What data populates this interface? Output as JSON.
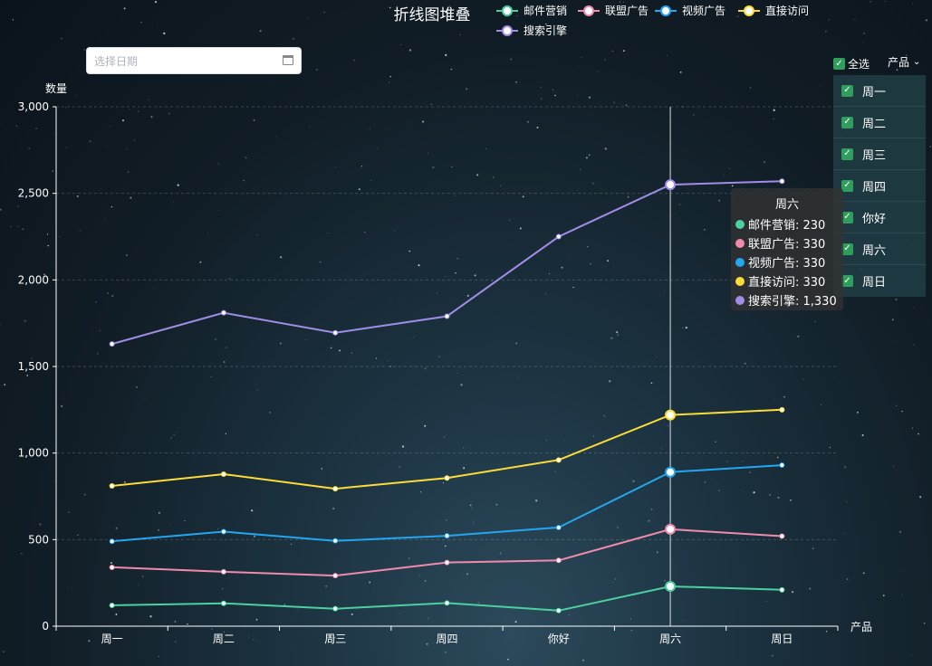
{
  "chart_data": {
    "type": "line",
    "title": "折线图堆叠",
    "ylabel": "数量",
    "xlabel": "产品",
    "categories": [
      "周一",
      "周二",
      "周三",
      "周四",
      "你好",
      "周六",
      "周日"
    ],
    "stacked": true,
    "ylim": [
      0,
      3000
    ],
    "yticks": [
      0,
      500,
      1000,
      1500,
      2000,
      2500,
      3000
    ],
    "ytick_labels": [
      "0",
      "500",
      "1,000",
      "1,500",
      "2,000",
      "2,500",
      "3,000"
    ],
    "grid": "horizontal dashed",
    "legend_position": "top-center",
    "series": [
      {
        "name": "邮件营销",
        "color": "#4cd0a0",
        "values": [
          120,
          132,
          101,
          134,
          90,
          230,
          210
        ]
      },
      {
        "name": "联盟广告",
        "color": "#f08bab",
        "values": [
          220,
          182,
          191,
          234,
          290,
          330,
          310
        ]
      },
      {
        "name": "视频广告",
        "color": "#22a7f0",
        "values": [
          150,
          232,
          201,
          154,
          190,
          330,
          410
        ]
      },
      {
        "name": "直接访问",
        "color": "#fcdc38",
        "values": [
          320,
          332,
          301,
          334,
          390,
          330,
          320
        ]
      },
      {
        "name": "搜索引擎",
        "color": "#a08ee6",
        "values": [
          820,
          932,
          901,
          934,
          1290,
          1330,
          1320
        ]
      }
    ],
    "highlight": {
      "index": 5,
      "category": "周六"
    }
  },
  "date_picker": {
    "placeholder": "选择日期",
    "icon": "calendar-icon"
  },
  "filter": {
    "select_all_label": "全选",
    "select_all_checked": true,
    "product_label": "产品",
    "items": [
      {
        "label": "周一",
        "checked": true
      },
      {
        "label": "周二",
        "checked": true
      },
      {
        "label": "周三",
        "checked": true
      },
      {
        "label": "周四",
        "checked": true
      },
      {
        "label": "你好",
        "checked": true
      },
      {
        "label": "周六",
        "checked": true
      },
      {
        "label": "周日",
        "checked": true
      }
    ]
  },
  "tooltip": {
    "title": "周六",
    "rows": [
      {
        "label": "邮件营销: 230",
        "color": "#4cd0a0"
      },
      {
        "label": "联盟广告: 330",
        "color": "#f08bab"
      },
      {
        "label": "视频广告: 330",
        "color": "#22a7f0"
      },
      {
        "label": "直接访问: 330",
        "color": "#fcdc38"
      },
      {
        "label": "搜索引擎: 1,330",
        "color": "#a08ee6"
      }
    ]
  }
}
